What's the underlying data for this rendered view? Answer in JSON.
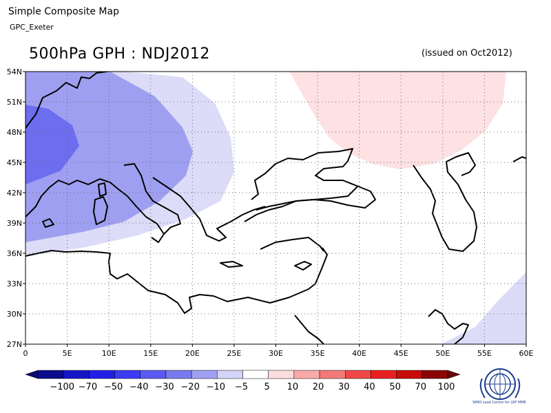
{
  "header": {
    "title": "Simple Composite Map",
    "subtitle": "GPC_Exeter"
  },
  "map": {
    "title": "500hPa GPH : NDJ2012",
    "issued": "(issued on Oct2012)",
    "lat_labels": [
      "54N",
      "51N",
      "48N",
      "45N",
      "42N",
      "39N",
      "36N",
      "33N",
      "30N",
      "27N"
    ],
    "lon_labels": [
      "0",
      "5E",
      "10E",
      "15E",
      "20E",
      "25E",
      "30E",
      "35E",
      "40E",
      "45E",
      "50E",
      "55E",
      "60E"
    ],
    "lat_range": [
      27,
      54
    ],
    "lon_range": [
      0,
      60
    ]
  },
  "colorbar": {
    "labels": [
      "−100",
      "−70",
      "−50",
      "−40",
      "−30",
      "−20",
      "−10",
      "−5",
      "5",
      "10",
      "20",
      "30",
      "40",
      "50",
      "70",
      "100"
    ],
    "colors": [
      "#0b0b8c",
      "#1616c8",
      "#2020e6",
      "#3c3cf2",
      "#5a5af2",
      "#7a7af0",
      "#a0a0f2",
      "#d4d4f8",
      "#ffffff",
      "#fcdcdc",
      "#f8aaaa",
      "#f47a7a",
      "#f04848",
      "#ea2020",
      "#c80a0a",
      "#8c0505"
    ]
  },
  "logo": {
    "text": "WMO Lead Centre for LRF MME"
  }
}
